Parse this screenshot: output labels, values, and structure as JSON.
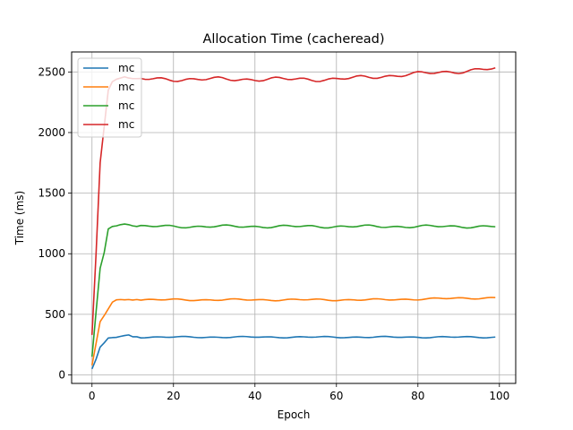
{
  "chart_data": {
    "type": "line",
    "title": "Allocation Time (cacheread)",
    "xlabel": "Epoch",
    "ylabel": "Time (ms)",
    "xlim": [
      -5,
      104
    ],
    "ylim": [
      -70,
      2665
    ],
    "xticks": [
      0,
      20,
      40,
      60,
      80,
      100
    ],
    "yticks": [
      0,
      500,
      1000,
      1500,
      2000,
      2500
    ],
    "grid": true,
    "legend_position": "upper-left",
    "series": [
      {
        "name": "mc",
        "color": "#1f77b4",
        "base": 312,
        "head": [
          50,
          130,
          230,
          265,
          305,
          308,
          310,
          318,
          325,
          330,
          315,
          315
        ],
        "jitter": 6
      },
      {
        "name": "mc",
        "color": "#ff7f0e",
        "base": 620,
        "head": [
          80,
          260,
          440,
          490,
          545,
          600,
          620,
          622,
          620,
          622,
          618,
          622
        ],
        "jitter": 8
      },
      {
        "name": "mc",
        "color": "#2ca02c",
        "base": 1225,
        "head": [
          150,
          520,
          880,
          1010,
          1205,
          1225,
          1230,
          1240,
          1245,
          1240,
          1230,
          1225
        ],
        "jitter": 12
      },
      {
        "name": "mc",
        "color": "#d62728",
        "base": 2440,
        "head": [
          330,
          1000,
          1750,
          2050,
          2350,
          2420,
          2440,
          2450,
          2460,
          2450,
          2445,
          2445
        ],
        "jitter": 18
      }
    ],
    "x_count": 100
  }
}
